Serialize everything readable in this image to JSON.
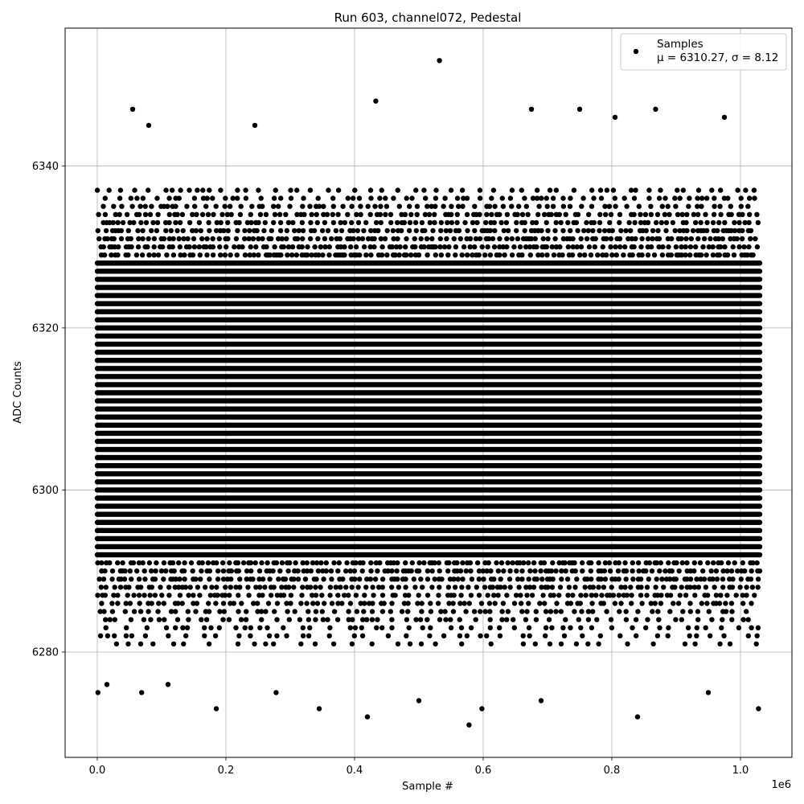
{
  "chart_data": {
    "type": "scatter",
    "title": "Run 603, channel072, Pedestal",
    "xlabel": "Sample #",
    "ylabel": "ADC Counts",
    "x_offset_label": "1e6",
    "xlim": [
      -0.05,
      1.08
    ],
    "ylim": [
      6267,
      6357
    ],
    "x_ticks": [
      0.0,
      0.2,
      0.4,
      0.6,
      0.8,
      1.0
    ],
    "x_tick_labels": [
      "0.0",
      "0.2",
      "0.4",
      "0.6",
      "0.8",
      "1.0"
    ],
    "y_ticks": [
      6280,
      6300,
      6320,
      6340
    ],
    "y_tick_labels": [
      "6280",
      "6300",
      "6320",
      "6340"
    ],
    "grid": true,
    "legend_position": "top-right",
    "series": [
      {
        "name": "Samples",
        "legend_stats": "μ = 6310.27, σ = 8.12",
        "color": "#000000",
        "marker": "circle",
        "x_range": [
          0.0,
          1.03
        ],
        "mean": 6310.27,
        "std": 8.12,
        "outliers": [
          {
            "x": 0.001,
            "y": 6275
          },
          {
            "x": 0.015,
            "y": 6276
          },
          {
            "x": 0.069,
            "y": 6275
          },
          {
            "x": 0.11,
            "y": 6276
          },
          {
            "x": 0.185,
            "y": 6273
          },
          {
            "x": 0.278,
            "y": 6275
          },
          {
            "x": 0.345,
            "y": 6273
          },
          {
            "x": 0.42,
            "y": 6272
          },
          {
            "x": 0.5,
            "y": 6274
          },
          {
            "x": 0.578,
            "y": 6271
          },
          {
            "x": 0.598,
            "y": 6273
          },
          {
            "x": 0.69,
            "y": 6274
          },
          {
            "x": 0.84,
            "y": 6272
          },
          {
            "x": 0.95,
            "y": 6275
          },
          {
            "x": 1.028,
            "y": 6273
          },
          {
            "x": 0.055,
            "y": 6347
          },
          {
            "x": 0.08,
            "y": 6345
          },
          {
            "x": 0.245,
            "y": 6345
          },
          {
            "x": 0.433,
            "y": 6348
          },
          {
            "x": 0.532,
            "y": 6353
          },
          {
            "x": 0.675,
            "y": 6347
          },
          {
            "x": 0.75,
            "y": 6347
          },
          {
            "x": 0.805,
            "y": 6346
          },
          {
            "x": 0.868,
            "y": 6347
          },
          {
            "x": 0.975,
            "y": 6346
          }
        ]
      }
    ]
  }
}
